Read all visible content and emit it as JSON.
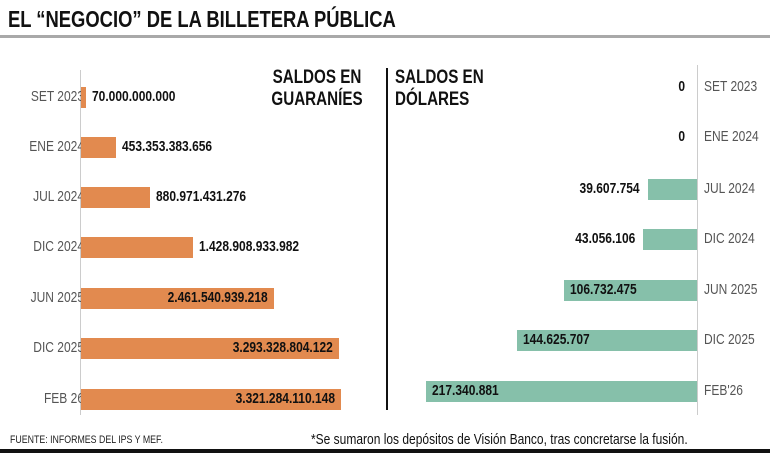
{
  "title": "EL “NEGOCIO” DE LA BILLETERA PÚBLICA",
  "footer": {
    "source": "FUENTE: INFORMES DEL IPS Y MEF.",
    "note": "*Se sumaron los depósitos de Visión Banco, tras concretarse la fusión."
  },
  "chart_data": [
    {
      "type": "bar",
      "orientation": "horizontal",
      "title_lines": [
        "SALDOS EN",
        "GUARANÍES"
      ],
      "categories": [
        "SET 2023",
        "ENE 2024",
        "JUL 2024",
        "DIC 2024",
        "JUN 2025",
        "DIC 2025",
        "FEB 26"
      ],
      "values": [
        70000000000,
        453353383656,
        880971431276,
        1428908933982,
        2461540939218,
        3293328804122,
        3321284110148
      ],
      "labels": [
        "70.000.000.000",
        "453.353.383.656",
        "880.971.431.276",
        "1.428.908.933.982",
        "2.461.540.939.218",
        "3.293.328.804.122",
        "3.321.284.110.148"
      ],
      "color": "#e28a4f",
      "direction": "left-to-right"
    },
    {
      "type": "bar",
      "orientation": "horizontal",
      "title_lines": [
        "SALDOS EN",
        "DÓLARES"
      ],
      "categories": [
        "SET 2023",
        "ENE 2024",
        "JUL 2024",
        "DIC 2024",
        "JUN 2025",
        "DIC 2025",
        "FEB'26"
      ],
      "values": [
        0,
        0,
        39607754,
        43056106,
        106732475,
        144625707,
        217340881
      ],
      "labels": [
        "0",
        "0",
        "39.607.754",
        "43.056.106",
        "106.732.475",
        "144.625.707",
        "217.340.881"
      ],
      "color": "#86c0aa",
      "direction": "right-to-left"
    }
  ]
}
